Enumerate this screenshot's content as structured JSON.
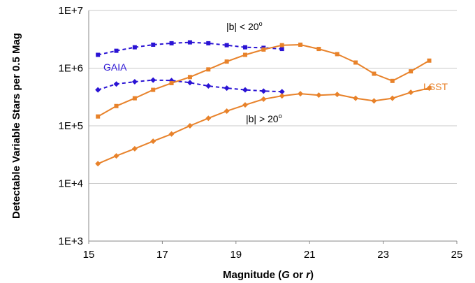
{
  "chart_data": {
    "type": "line",
    "xlabel": {
      "prefix": "Magnitude (",
      "g": "G",
      "mid": " or ",
      "r": "r",
      "suffix": ")"
    },
    "ylabel": "Detectable Variable Stars per 0.5 Mag",
    "xlim": [
      15,
      25
    ],
    "ylim": [
      1000,
      10000000
    ],
    "yscale": "log",
    "grid": "horizontal",
    "x_ticks": [
      "15",
      "17",
      "19",
      "21",
      "23",
      "25"
    ],
    "y_ticks": [
      "1E+3",
      "1E+4",
      "1E+5",
      "1E+6",
      "1E+7"
    ],
    "labels": {
      "gaia": "GAIA",
      "lsst": "LSST",
      "low_lat": {
        "base": "|b| < 20",
        "sup": "o"
      },
      "high_lat": {
        "base": "|b| > 20",
        "sup": "o"
      }
    },
    "colors": {
      "gaia": "#2a13d4",
      "lsst": "#e8822a",
      "grid": "#c8c8c8",
      "axis": "#888888"
    },
    "series": [
      {
        "survey": "GAIA",
        "latitude": "|b| < 20",
        "marker": "square",
        "dash": true,
        "x": [
          15.25,
          15.75,
          16.25,
          16.75,
          17.25,
          17.75,
          18.25,
          18.75,
          19.25,
          19.75,
          20.25
        ],
        "y": [
          1700000,
          2000000,
          2300000,
          2550000,
          2700000,
          2800000,
          2700000,
          2500000,
          2300000,
          2250000,
          2150000
        ]
      },
      {
        "survey": "GAIA",
        "latitude": "|b| > 20",
        "marker": "diamond",
        "dash": true,
        "x": [
          15.25,
          15.75,
          16.25,
          16.75,
          17.25,
          17.75,
          18.25,
          18.75,
          19.25,
          19.75,
          20.25
        ],
        "y": [
          420000,
          530000,
          580000,
          620000,
          610000,
          560000,
          490000,
          450000,
          420000,
          400000,
          390000
        ]
      },
      {
        "survey": "LSST",
        "latitude": "|b| < 20",
        "marker": "square",
        "dash": false,
        "x": [
          15.25,
          15.75,
          16.25,
          16.75,
          17.25,
          17.75,
          18.25,
          18.75,
          19.25,
          19.75,
          20.25,
          20.75,
          21.25,
          21.75,
          22.25,
          22.75,
          23.25,
          23.75,
          24.25
        ],
        "y": [
          145000,
          220000,
          300000,
          420000,
          550000,
          700000,
          950000,
          1300000,
          1700000,
          2100000,
          2500000,
          2550000,
          2150000,
          1750000,
          1250000,
          800000,
          600000,
          880000,
          1350000
        ]
      },
      {
        "survey": "LSST",
        "latitude": "|b| > 20",
        "marker": "diamond",
        "dash": false,
        "x": [
          15.25,
          15.75,
          16.25,
          16.75,
          17.25,
          17.75,
          18.25,
          18.75,
          19.25,
          19.75,
          20.25,
          20.75,
          21.25,
          21.75,
          22.25,
          22.75,
          23.25,
          23.75,
          24.25
        ],
        "y": [
          22000,
          30000,
          40000,
          54000,
          72000,
          100000,
          135000,
          180000,
          230000,
          290000,
          330000,
          360000,
          340000,
          350000,
          300000,
          270000,
          300000,
          380000,
          450000
        ]
      }
    ]
  }
}
